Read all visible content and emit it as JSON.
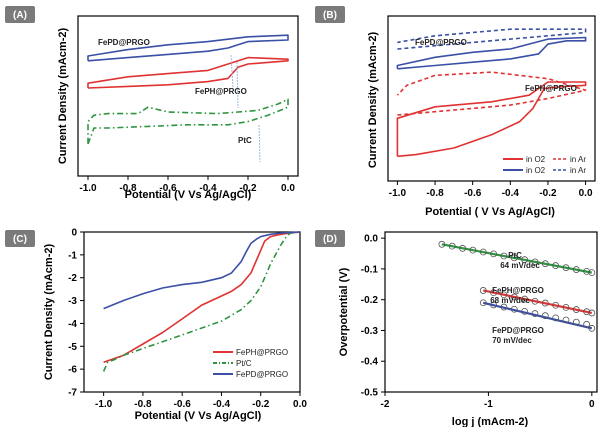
{
  "colors": {
    "red": "#e03232",
    "blue": "#3a4fa6",
    "green": "#2e9440",
    "lightblue": "#9fb8e0",
    "dashblue": "#3a4fa6"
  },
  "chart_data": [
    {
      "panel": "(A)",
      "type": "line",
      "xlabel": "Potential (V Vs Ag/AgCl)",
      "ylabel": "Current Density (mAcm-2)",
      "xlim": [
        -1.05,
        0.05
      ],
      "xticks": [
        "-1.0",
        "-0.8",
        "-0.6",
        "-0.4",
        "-0.2",
        "0.0"
      ],
      "annotations": [
        "FePD@PRGO",
        "FePH@PRGO",
        "PtC"
      ],
      "series": [
        {
          "name": "FePD@PRGO",
          "color": "blue",
          "style": "solid",
          "points": [
            [
              -1.0,
              0.72
            ],
            [
              -0.8,
              0.74
            ],
            [
              -0.6,
              0.76
            ],
            [
              -0.4,
              0.78
            ],
            [
              -0.3,
              0.8
            ],
            [
              -0.25,
              0.82
            ],
            [
              -0.2,
              0.84
            ],
            [
              0.0,
              0.85
            ],
            [
              0.0,
              0.88
            ],
            [
              -0.2,
              0.87
            ],
            [
              -0.4,
              0.84
            ],
            [
              -0.6,
              0.82
            ],
            [
              -0.8,
              0.79
            ],
            [
              -1.0,
              0.75
            ],
            [
              -1.0,
              0.72
            ]
          ]
        },
        {
          "name": "FePH@PRGO",
          "color": "red",
          "style": "solid",
          "points": [
            [
              -1.0,
              0.55
            ],
            [
              -0.8,
              0.56
            ],
            [
              -0.6,
              0.57
            ],
            [
              -0.4,
              0.59
            ],
            [
              -0.3,
              0.61
            ],
            [
              -0.25,
              0.68
            ],
            [
              -0.2,
              0.7
            ],
            [
              0.0,
              0.72
            ],
            [
              0.0,
              0.73
            ],
            [
              -0.2,
              0.74
            ],
            [
              -0.3,
              0.7
            ],
            [
              -0.4,
              0.66
            ],
            [
              -0.6,
              0.64
            ],
            [
              -0.8,
              0.62
            ],
            [
              -1.0,
              0.58
            ],
            [
              -1.0,
              0.55
            ]
          ]
        },
        {
          "name": "PtC",
          "color": "green",
          "style": "dashdot",
          "points": [
            [
              -1.0,
              0.2
            ],
            [
              -0.97,
              0.3
            ],
            [
              -0.9,
              0.3
            ],
            [
              -0.7,
              0.31
            ],
            [
              -0.5,
              0.32
            ],
            [
              -0.3,
              0.32
            ],
            [
              -0.2,
              0.34
            ],
            [
              -0.1,
              0.38
            ],
            [
              0.0,
              0.43
            ],
            [
              0.0,
              0.48
            ],
            [
              -0.05,
              0.45
            ],
            [
              -0.15,
              0.41
            ],
            [
              -0.25,
              0.4
            ],
            [
              -0.35,
              0.39
            ],
            [
              -0.6,
              0.4
            ],
            [
              -0.7,
              0.43
            ],
            [
              -0.75,
              0.39
            ],
            [
              -0.9,
              0.39
            ],
            [
              -0.97,
              0.38
            ],
            [
              -1.0,
              0.34
            ],
            [
              -1.0,
              0.2
            ]
          ]
        }
      ]
    },
    {
      "panel": "(B)",
      "type": "line",
      "xlabel": "Potential ( V Vs Ag/AgCl)",
      "ylabel": "Current Density (mAcm-2)",
      "xlim": [
        -1.05,
        0.05
      ],
      "xticks": [
        "-1.0",
        "-0.8",
        "-0.6",
        "-0.4",
        "-0.2",
        "0.0"
      ],
      "annotations": [
        "FePD@PRGO",
        "FePH@PRGO"
      ],
      "legend": {
        "rows": [
          [
            "in O2",
            "in Ar"
          ],
          [
            "in O2",
            "in Ar"
          ]
        ],
        "placement": "bottom-right"
      },
      "series": [
        {
          "name": "FePD@PRGO in O2",
          "color": "blue",
          "style": "solid",
          "points": [
            [
              -1.0,
              0.68
            ],
            [
              -0.8,
              0.7
            ],
            [
              -0.6,
              0.72
            ],
            [
              -0.4,
              0.74
            ],
            [
              -0.25,
              0.77
            ],
            [
              -0.2,
              0.83
            ],
            [
              -0.1,
              0.85
            ],
            [
              0.0,
              0.85
            ],
            [
              0.0,
              0.87
            ],
            [
              -0.2,
              0.86
            ],
            [
              -0.4,
              0.8
            ],
            [
              -0.6,
              0.78
            ],
            [
              -0.8,
              0.75
            ],
            [
              -1.0,
              0.7
            ],
            [
              -1.0,
              0.68
            ]
          ]
        },
        {
          "name": "FePD@PRGO in Ar",
          "color": "blue",
          "style": "dashed",
          "points": [
            [
              -1.0,
              0.8
            ],
            [
              -0.6,
              0.84
            ],
            [
              -0.2,
              0.88
            ],
            [
              0.0,
              0.9
            ],
            [
              0.0,
              0.92
            ],
            [
              -0.4,
              0.92
            ],
            [
              -0.8,
              0.88
            ],
            [
              -1.0,
              0.84
            ]
          ]
        },
        {
          "name": "FePH@PRGO in O2",
          "color": "red",
          "style": "solid",
          "points": [
            [
              -1.0,
              0.15
            ],
            [
              -0.9,
              0.16
            ],
            [
              -0.7,
              0.2
            ],
            [
              -0.5,
              0.28
            ],
            [
              -0.35,
              0.36
            ],
            [
              -0.28,
              0.44
            ],
            [
              -0.22,
              0.56
            ],
            [
              -0.15,
              0.57
            ],
            [
              0.0,
              0.58
            ],
            [
              0.0,
              0.6
            ],
            [
              -0.2,
              0.6
            ],
            [
              -0.3,
              0.52
            ],
            [
              -0.5,
              0.48
            ],
            [
              -0.8,
              0.45
            ],
            [
              -1.0,
              0.38
            ],
            [
              -1.0,
              0.15
            ]
          ]
        },
        {
          "name": "FePH@PRGO in Ar",
          "color": "red",
          "style": "dashed",
          "points": [
            [
              -1.0,
              0.4
            ],
            [
              -0.8,
              0.42
            ],
            [
              -0.6,
              0.44
            ],
            [
              -0.4,
              0.46
            ],
            [
              -0.2,
              0.5
            ],
            [
              0.0,
              0.55
            ],
            [
              -0.2,
              0.62
            ],
            [
              -0.5,
              0.66
            ],
            [
              -0.8,
              0.64
            ],
            [
              -0.95,
              0.58
            ],
            [
              -1.0,
              0.52
            ]
          ]
        }
      ]
    },
    {
      "panel": "(C)",
      "type": "line",
      "xlabel": "Potential (V Vs Ag/AgCl)",
      "ylabel": "Current Density (mAcm-2)",
      "xlim": [
        -1.1,
        0.0
      ],
      "ylim": [
        -7,
        0
      ],
      "xticks": [
        "-1.0",
        "-0.8",
        "-0.6",
        "-0.4",
        "-0.2",
        "0.0"
      ],
      "yticks": [
        "0",
        "-1",
        "-2",
        "-3",
        "-4",
        "-5",
        "-6",
        "-7"
      ],
      "legend": {
        "entries": [
          "FePH@PRGO",
          "Pt/C",
          "FePD@PRGO"
        ],
        "placement": "bottom-right"
      },
      "series": [
        {
          "name": "FePH@PRGO",
          "color": "red",
          "style": "solid",
          "x": [
            -1.0,
            -0.9,
            -0.8,
            -0.7,
            -0.6,
            -0.5,
            -0.4,
            -0.35,
            -0.3,
            -0.25,
            -0.22,
            -0.2,
            -0.18,
            -0.15,
            -0.1,
            -0.05,
            0.0
          ],
          "y": [
            -5.7,
            -5.4,
            -4.9,
            -4.4,
            -3.8,
            -3.2,
            -2.8,
            -2.6,
            -2.3,
            -1.8,
            -1.2,
            -0.8,
            -0.4,
            -0.2,
            -0.1,
            -0.05,
            0.0
          ]
        },
        {
          "name": "Pt/C",
          "color": "green",
          "style": "dashdot",
          "x": [
            -1.0,
            -0.98,
            -0.95,
            -0.9,
            -0.8,
            -0.7,
            -0.6,
            -0.5,
            -0.4,
            -0.3,
            -0.25,
            -0.2,
            -0.15,
            -0.1,
            -0.07,
            -0.05,
            0.0
          ],
          "y": [
            -6.1,
            -5.7,
            -5.6,
            -5.4,
            -5.1,
            -4.8,
            -4.5,
            -4.2,
            -3.9,
            -3.4,
            -3.0,
            -2.4,
            -1.4,
            -0.6,
            -0.2,
            -0.05,
            0.0
          ]
        },
        {
          "name": "FePD@PRGO",
          "color": "blue",
          "style": "solid",
          "x": [
            -1.0,
            -0.9,
            -0.8,
            -0.7,
            -0.6,
            -0.5,
            -0.4,
            -0.35,
            -0.3,
            -0.27,
            -0.25,
            -0.22,
            -0.2,
            -0.15,
            -0.1,
            0.0
          ],
          "y": [
            -3.35,
            -3.0,
            -2.7,
            -2.45,
            -2.3,
            -2.2,
            -2.0,
            -1.8,
            -1.3,
            -0.8,
            -0.5,
            -0.3,
            -0.2,
            -0.1,
            -0.05,
            0.0
          ]
        }
      ]
    },
    {
      "panel": "(D)",
      "type": "scatter",
      "xlabel": "log j (mAcm-2)",
      "ylabel": "Overpotential (V)",
      "xlim": [
        -2.0,
        0.05
      ],
      "ylim": [
        -0.5,
        0.02
      ],
      "xticks": [
        "-2",
        "-1",
        "0"
      ],
      "yticks": [
        "0.0",
        "-0.1",
        "-0.2",
        "-0.3",
        "-0.4",
        "-0.5"
      ],
      "series": [
        {
          "name": "PtC",
          "label": "PtC",
          "slope": "64 mV/dec",
          "color": "green",
          "x": [
            -1.45,
            -1.35,
            -1.25,
            -1.15,
            -1.05,
            -0.95,
            -0.85,
            -0.75,
            -0.65,
            -0.55,
            -0.45,
            -0.35,
            -0.25,
            -0.15,
            -0.05,
            0.0
          ],
          "y": [
            -0.02,
            -0.026,
            -0.033,
            -0.039,
            -0.045,
            -0.051,
            -0.058,
            -0.064,
            -0.07,
            -0.077,
            -0.083,
            -0.089,
            -0.096,
            -0.102,
            -0.108,
            -0.112
          ]
        },
        {
          "name": "FePH@PRGO",
          "label": "FePH@PRGO",
          "slope": "68 mV/dec",
          "color": "red",
          "x": [
            -1.05,
            -0.95,
            -0.85,
            -0.75,
            -0.65,
            -0.55,
            -0.45,
            -0.35,
            -0.25,
            -0.15,
            -0.05,
            0.0
          ],
          "y": [
            -0.17,
            -0.177,
            -0.184,
            -0.191,
            -0.198,
            -0.205,
            -0.211,
            -0.218,
            -0.225,
            -0.232,
            -0.239,
            -0.243
          ]
        },
        {
          "name": "FePD@PRGO",
          "label": "FePD@PRGO",
          "slope": "70 mV/dec",
          "color": "blue",
          "x": [
            -1.05,
            -0.95,
            -0.85,
            -0.75,
            -0.65,
            -0.55,
            -0.45,
            -0.35,
            -0.25,
            -0.15,
            -0.05,
            0.0
          ],
          "y": [
            -0.21,
            -0.217,
            -0.224,
            -0.231,
            -0.238,
            -0.245,
            -0.252,
            -0.259,
            -0.266,
            -0.273,
            -0.28,
            -0.293
          ]
        }
      ]
    }
  ]
}
